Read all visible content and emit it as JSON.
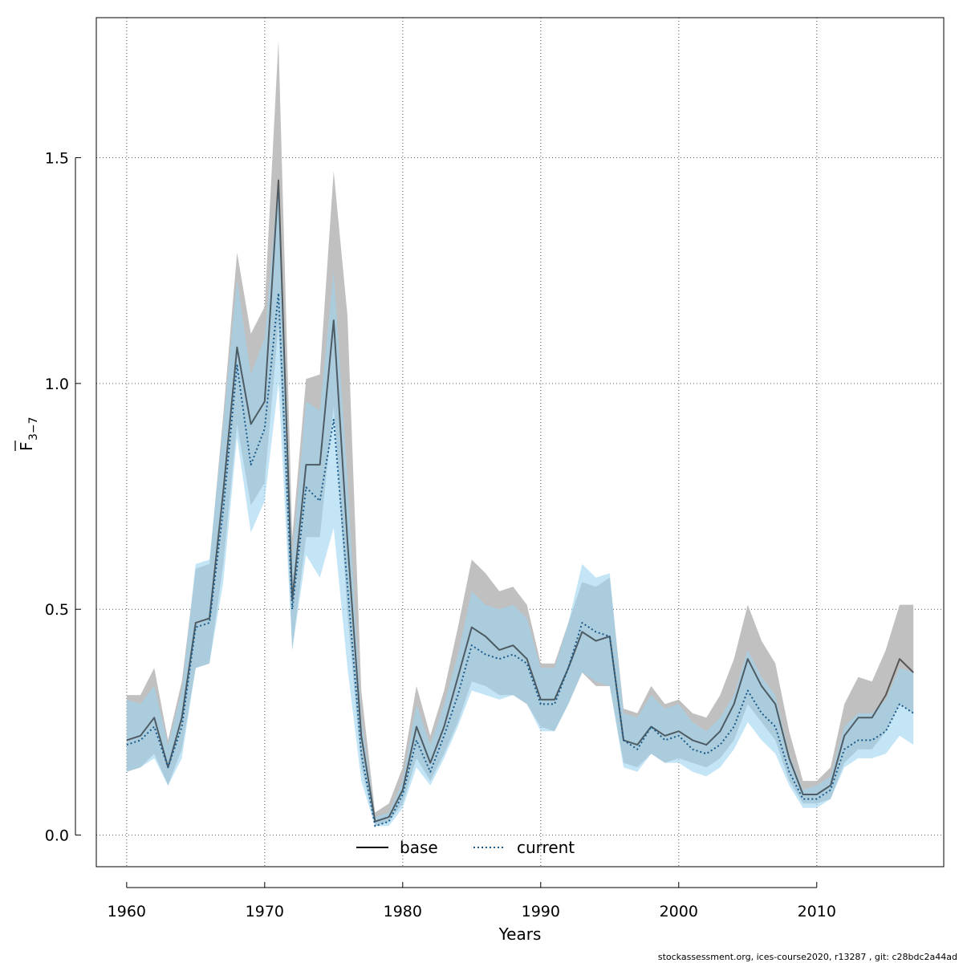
{
  "chart_data": {
    "type": "line",
    "title": "",
    "xlabel": "Years",
    "ylabel_main": "F",
    "ylabel_sub": "3−7",
    "xlim": [
      1957.8,
      2019.2
    ],
    "ylim": [
      -0.07,
      1.81
    ],
    "x_ticks": [
      1960,
      1970,
      1980,
      1990,
      2000,
      2010
    ],
    "x_tick_labels": [
      "1960",
      "1970",
      "1980",
      "1990",
      "2000",
      "2010"
    ],
    "y_ticks": [
      0.0,
      0.5,
      1.0,
      1.5
    ],
    "y_tick_labels": [
      "0.0",
      "0.5",
      "1.0",
      "1.5"
    ],
    "grid": true,
    "legend_position": "bottom-center",
    "x": [
      1960,
      1961,
      1962,
      1963,
      1964,
      1965,
      1966,
      1967,
      1968,
      1969,
      1970,
      1971,
      1972,
      1973,
      1974,
      1975,
      1976,
      1977,
      1978,
      1979,
      1980,
      1981,
      1982,
      1983,
      1984,
      1985,
      1986,
      1987,
      1988,
      1989,
      1990,
      1991,
      1992,
      1993,
      1994,
      1995,
      1996,
      1997,
      1998,
      1999,
      2000,
      2001,
      2002,
      2003,
      2004,
      2005,
      2006,
      2007,
      2008,
      2009,
      2010,
      2011,
      2012,
      2013,
      2014,
      2015,
      2016,
      2017
    ],
    "series": [
      {
        "name": "base",
        "color": "#000000",
        "band_color": "#bdbdbd",
        "values": [
          0.21,
          0.22,
          0.26,
          0.15,
          0.26,
          0.47,
          0.48,
          0.76,
          1.08,
          0.91,
          0.96,
          1.45,
          0.52,
          0.82,
          0.82,
          1.14,
          0.65,
          0.22,
          0.03,
          0.04,
          0.1,
          0.24,
          0.16,
          0.24,
          0.35,
          0.46,
          0.44,
          0.41,
          0.42,
          0.39,
          0.3,
          0.3,
          0.37,
          0.45,
          0.43,
          0.44,
          0.21,
          0.2,
          0.24,
          0.22,
          0.23,
          0.21,
          0.2,
          0.23,
          0.29,
          0.39,
          0.33,
          0.29,
          0.17,
          0.09,
          0.09,
          0.11,
          0.22,
          0.26,
          0.26,
          0.31,
          0.39,
          0.36
        ],
        "lower": [
          0.14,
          0.15,
          0.18,
          0.11,
          0.19,
          0.37,
          0.38,
          0.6,
          0.91,
          0.73,
          0.78,
          1.13,
          0.41,
          0.66,
          0.66,
          0.95,
          0.49,
          0.15,
          0.02,
          0.03,
          0.07,
          0.17,
          0.12,
          0.18,
          0.25,
          0.34,
          0.33,
          0.31,
          0.31,
          0.29,
          0.24,
          0.23,
          0.29,
          0.36,
          0.33,
          0.33,
          0.16,
          0.15,
          0.18,
          0.16,
          0.17,
          0.16,
          0.15,
          0.17,
          0.21,
          0.29,
          0.25,
          0.21,
          0.12,
          0.07,
          0.07,
          0.08,
          0.16,
          0.19,
          0.19,
          0.23,
          0.29,
          0.27
        ],
        "upper": [
          0.31,
          0.31,
          0.37,
          0.21,
          0.34,
          0.59,
          0.6,
          0.93,
          1.29,
          1.11,
          1.17,
          1.76,
          0.66,
          1.01,
          1.02,
          1.47,
          1.15,
          0.32,
          0.05,
          0.07,
          0.15,
          0.33,
          0.22,
          0.32,
          0.46,
          0.61,
          0.58,
          0.54,
          0.55,
          0.51,
          0.38,
          0.38,
          0.47,
          0.56,
          0.55,
          0.57,
          0.28,
          0.27,
          0.33,
          0.29,
          0.3,
          0.27,
          0.26,
          0.31,
          0.39,
          0.51,
          0.43,
          0.38,
          0.23,
          0.12,
          0.12,
          0.15,
          0.29,
          0.35,
          0.34,
          0.41,
          0.51,
          0.51
        ]
      },
      {
        "name": "current",
        "color": "#1a5a8a",
        "band_color": "#9dd4f0",
        "values": [
          0.2,
          0.21,
          0.24,
          0.15,
          0.24,
          0.46,
          0.47,
          0.72,
          1.04,
          0.82,
          0.9,
          1.2,
          0.5,
          0.77,
          0.74,
          0.92,
          0.55,
          0.18,
          0.02,
          0.03,
          0.09,
          0.21,
          0.14,
          0.22,
          0.31,
          0.42,
          0.4,
          0.39,
          0.4,
          0.38,
          0.29,
          0.29,
          0.37,
          0.47,
          0.45,
          0.44,
          0.21,
          0.19,
          0.24,
          0.21,
          0.22,
          0.19,
          0.18,
          0.2,
          0.24,
          0.32,
          0.27,
          0.24,
          0.14,
          0.08,
          0.08,
          0.1,
          0.19,
          0.21,
          0.21,
          0.23,
          0.29,
          0.27
        ],
        "lower": [
          0.14,
          0.15,
          0.17,
          0.11,
          0.17,
          0.37,
          0.38,
          0.56,
          0.88,
          0.67,
          0.74,
          1.0,
          0.41,
          0.62,
          0.57,
          0.68,
          0.37,
          0.12,
          0.02,
          0.02,
          0.06,
          0.15,
          0.11,
          0.17,
          0.24,
          0.32,
          0.31,
          0.3,
          0.31,
          0.29,
          0.23,
          0.23,
          0.29,
          0.36,
          0.34,
          0.33,
          0.15,
          0.14,
          0.18,
          0.16,
          0.16,
          0.14,
          0.13,
          0.15,
          0.19,
          0.25,
          0.21,
          0.18,
          0.11,
          0.06,
          0.06,
          0.08,
          0.15,
          0.17,
          0.17,
          0.18,
          0.22,
          0.2
        ],
        "upper": [
          0.3,
          0.29,
          0.33,
          0.2,
          0.32,
          0.6,
          0.61,
          0.91,
          1.23,
          1.02,
          1.1,
          1.45,
          0.61,
          0.96,
          0.94,
          1.25,
          0.79,
          0.26,
          0.04,
          0.05,
          0.12,
          0.29,
          0.2,
          0.29,
          0.4,
          0.54,
          0.51,
          0.5,
          0.51,
          0.48,
          0.37,
          0.37,
          0.47,
          0.6,
          0.57,
          0.58,
          0.27,
          0.26,
          0.31,
          0.28,
          0.29,
          0.25,
          0.23,
          0.26,
          0.31,
          0.41,
          0.35,
          0.31,
          0.18,
          0.1,
          0.11,
          0.13,
          0.24,
          0.27,
          0.27,
          0.3,
          0.37,
          0.36
        ]
      }
    ]
  },
  "footer": "stockassessment.org, ices-course2020, r13287 , git: c28bdc2a44ad"
}
